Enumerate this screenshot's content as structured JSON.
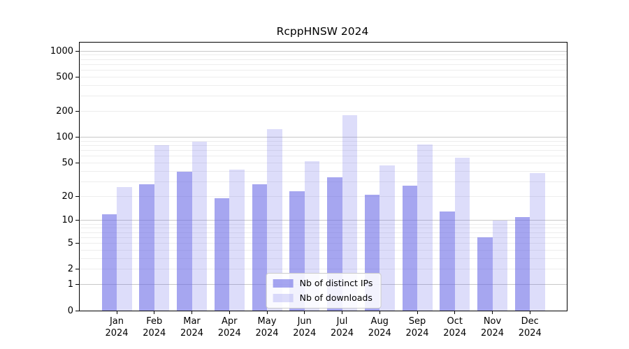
{
  "title": "RcppHNSW 2024",
  "chart_data": {
    "type": "bar",
    "title": "RcppHNSW 2024",
    "categories": [
      "Jan",
      "Feb",
      "Mar",
      "Apr",
      "May",
      "Jun",
      "Jul",
      "Aug",
      "Sep",
      "Oct",
      "Nov",
      "Dec"
    ],
    "year_label": "2024",
    "series": [
      {
        "name": "Nb of distinct IPs",
        "color": "rgba(102,102,230,0.58)",
        "values": [
          12,
          28,
          39,
          19,
          28,
          23,
          34,
          21,
          27,
          13,
          6,
          11
        ]
      },
      {
        "name": "Nb of downloads",
        "color": "rgba(102,102,230,0.22)",
        "values": [
          26,
          80,
          89,
          42,
          125,
          52,
          180,
          47,
          82,
          57,
          10,
          38
        ]
      }
    ],
    "y_ticks": [
      0,
      1,
      2,
      5,
      10,
      20,
      50,
      100,
      200,
      500,
      1000
    ],
    "y_scale": "log1p",
    "ylim": [
      0,
      1250
    ],
    "grid": true,
    "legend_position": "lower center",
    "colors": {
      "grid_major": "#c8c8c8",
      "grid_minor": "#ededed",
      "spine": "#000000",
      "background": "#ffffff"
    }
  }
}
